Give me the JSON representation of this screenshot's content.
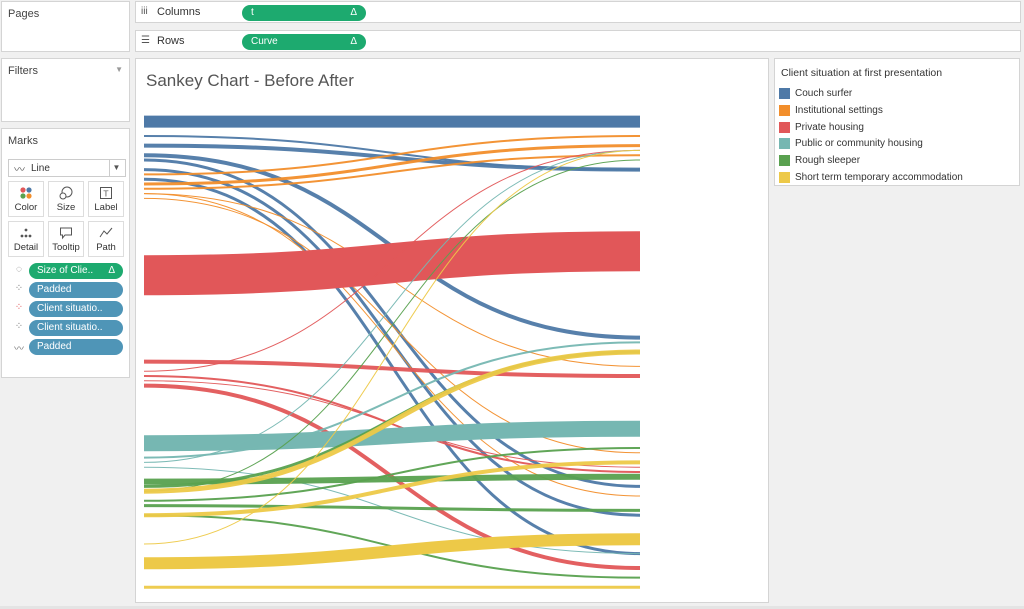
{
  "left_panel": {
    "pages_label": "Pages",
    "filters_label": "Filters",
    "marks_label": "Marks",
    "mark_type": "Line",
    "mark_buttons": [
      {
        "label": "Color",
        "icon": "color-icon"
      },
      {
        "label": "Size",
        "icon": "size-icon"
      },
      {
        "label": "Label",
        "icon": "label-icon"
      },
      {
        "label": "Detail",
        "icon": "detail-icon"
      },
      {
        "label": "Tooltip",
        "icon": "tooltip-icon"
      },
      {
        "label": "Path",
        "icon": "path-icon"
      }
    ],
    "mark_pills": [
      {
        "label": "Size of Clie..",
        "icon": "size-icon",
        "color": "green",
        "delta": "Δ"
      },
      {
        "label": "Padded",
        "icon": "detail-icon",
        "color": "blue",
        "delta": ""
      },
      {
        "label": "Client situatio..",
        "icon": "color-icon",
        "color": "blue",
        "delta": ""
      },
      {
        "label": "Client situatio..",
        "icon": "detail-icon",
        "color": "blue",
        "delta": ""
      },
      {
        "label": "Padded",
        "icon": "path-icon",
        "color": "blue",
        "delta": ""
      }
    ]
  },
  "shelves": {
    "columns": {
      "label": "Columns",
      "pill": "t",
      "delta": "Δ"
    },
    "rows": {
      "label": "Rows",
      "pill": "Curve",
      "delta": "Δ"
    }
  },
  "chart_title": "Sankey Chart - Before After",
  "legend": {
    "title": "Client situation at first presentation",
    "items": [
      {
        "label": "Couch surfer",
        "color": "#4e79a7"
      },
      {
        "label": "Institutional settings",
        "color": "#f28e2b"
      },
      {
        "label": "Private housing",
        "color": "#e15759"
      },
      {
        "label": "Public or community housing",
        "color": "#76b7b2"
      },
      {
        "label": "Rough sleeper",
        "color": "#59a14f"
      },
      {
        "label": "Short term temporary accommodation",
        "color": "#edc948"
      }
    ]
  },
  "chart_data": {
    "type": "sankey",
    "title": "Sankey Chart - Before After",
    "categories": [
      "Couch surfer",
      "Institutional settings",
      "Private housing",
      "Public or community housing",
      "Rough sleeper",
      "Short term temporary accommodation"
    ],
    "flows": [
      {
        "from": "Couch surfer",
        "y0": 0.02,
        "y1": 0.02,
        "w": 12
      },
      {
        "from": "Couch surfer",
        "y0": 0.05,
        "y1": 0.12,
        "w": 2
      },
      {
        "from": "Couch surfer",
        "y0": 0.07,
        "y1": 0.12,
        "w": 4
      },
      {
        "from": "Couch surfer",
        "y0": 0.09,
        "y1": 0.47,
        "w": 4
      },
      {
        "from": "Couch surfer",
        "y0": 0.1,
        "y1": 0.78,
        "w": 3
      },
      {
        "from": "Couch surfer",
        "y0": 0.12,
        "y1": 0.84,
        "w": 3
      },
      {
        "from": "Couch surfer",
        "y0": 0.14,
        "y1": 0.92,
        "w": 3
      },
      {
        "from": "Institutional settings",
        "y0": 0.13,
        "y1": 0.05,
        "w": 2
      },
      {
        "from": "Institutional settings",
        "y0": 0.15,
        "y1": 0.07,
        "w": 3
      },
      {
        "from": "Institutional settings",
        "y0": 0.16,
        "y1": 0.09,
        "w": 2
      },
      {
        "from": "Institutional settings",
        "y0": 0.17,
        "y1": 0.53,
        "w": 1
      },
      {
        "from": "Institutional settings",
        "y0": 0.18,
        "y1": 0.71,
        "w": 1
      },
      {
        "from": "Institutional settings",
        "y0": 0.17,
        "y1": 0.8,
        "w": 1
      },
      {
        "from": "Private housing",
        "y0": 0.34,
        "y1": 0.29,
        "w": 40
      },
      {
        "from": "Private housing",
        "y0": 0.52,
        "y1": 0.55,
        "w": 4
      },
      {
        "from": "Private housing",
        "y0": 0.54,
        "y1": 0.08,
        "w": 1
      },
      {
        "from": "Private housing",
        "y0": 0.55,
        "y1": 0.75,
        "w": 2
      },
      {
        "from": "Private housing",
        "y0": 0.57,
        "y1": 0.95,
        "w": 4
      },
      {
        "from": "Private housing",
        "y0": 0.56,
        "y1": 0.74,
        "w": 1
      },
      {
        "from": "Public or community housing",
        "y0": 0.69,
        "y1": 0.66,
        "w": 16
      },
      {
        "from": "Public or community housing",
        "y0": 0.72,
        "y1": 0.48,
        "w": 2
      },
      {
        "from": "Public or community housing",
        "y0": 0.73,
        "y1": 0.08,
        "w": 1
      },
      {
        "from": "Public or community housing",
        "y0": 0.74,
        "y1": 0.92,
        "w": 1
      },
      {
        "from": "Rough sleeper",
        "y0": 0.77,
        "y1": 0.76,
        "w": 6
      },
      {
        "from": "Rough sleeper",
        "y0": 0.78,
        "y1": 0.5,
        "w": 3
      },
      {
        "from": "Rough sleeper",
        "y0": 0.79,
        "y1": 0.1,
        "w": 1
      },
      {
        "from": "Rough sleeper",
        "y0": 0.81,
        "y1": 0.7,
        "w": 2
      },
      {
        "from": "Rough sleeper",
        "y0": 0.82,
        "y1": 0.83,
        "w": 3
      },
      {
        "from": "Rough sleeper",
        "y0": 0.84,
        "y1": 0.97,
        "w": 2
      },
      {
        "from": "Short term temporary accommodation",
        "y0": 0.94,
        "y1": 0.89,
        "w": 12
      },
      {
        "from": "Short term temporary accommodation",
        "y0": 0.79,
        "y1": 0.5,
        "w": 5
      },
      {
        "from": "Short term temporary accommodation",
        "y0": 0.84,
        "y1": 0.73,
        "w": 4
      },
      {
        "from": "Short term temporary accommodation",
        "y0": 0.9,
        "y1": 0.08,
        "w": 1
      },
      {
        "from": "Short term temporary accommodation",
        "y0": 0.99,
        "y1": 0.99,
        "w": 3
      }
    ]
  }
}
